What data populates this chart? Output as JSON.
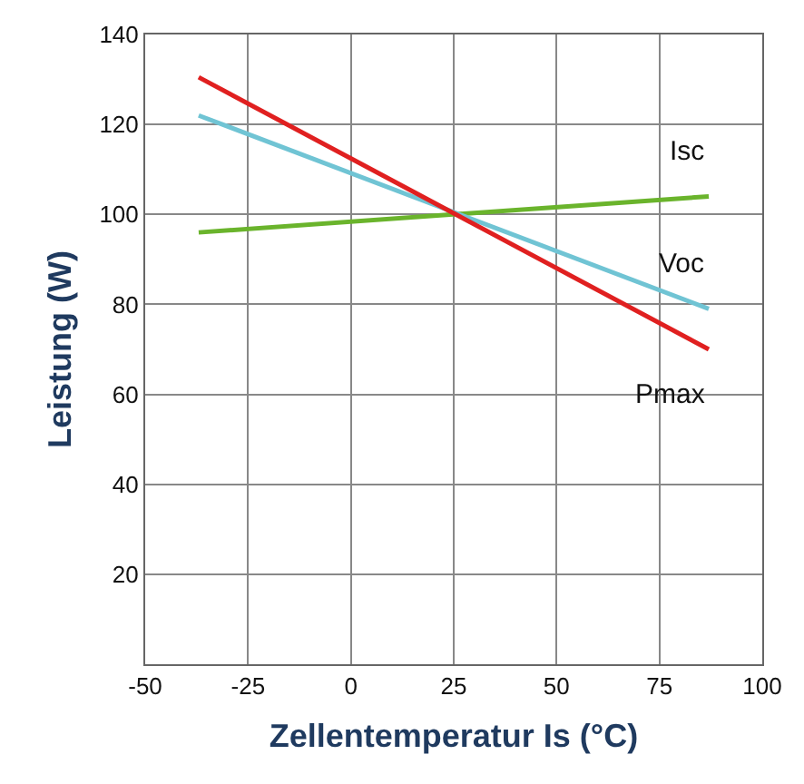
{
  "chart_data": {
    "type": "line",
    "xlabel": "Zellentemperatur Is (°C)",
    "ylabel": "Leistung (W)",
    "x": [
      -37,
      87
    ],
    "series": [
      {
        "name": "Isc",
        "color": "#6ab42c",
        "values": [
          96,
          104
        ]
      },
      {
        "name": "Voc",
        "color": "#70c4d4",
        "values": [
          122,
          79
        ]
      },
      {
        "name": "Pmax",
        "color": "#e02020",
        "values": [
          130.5,
          70
        ]
      }
    ],
    "xlim": [
      -50,
      100
    ],
    "xticks": [
      -50,
      -25,
      0,
      25,
      50,
      75,
      100
    ],
    "ylim": [
      0,
      140
    ],
    "yticks": [
      {
        "value": 0,
        "label": null
      },
      20,
      40,
      60,
      80,
      100,
      120,
      140
    ],
    "grid": true,
    "marker": "none",
    "line_style": "solid"
  }
}
